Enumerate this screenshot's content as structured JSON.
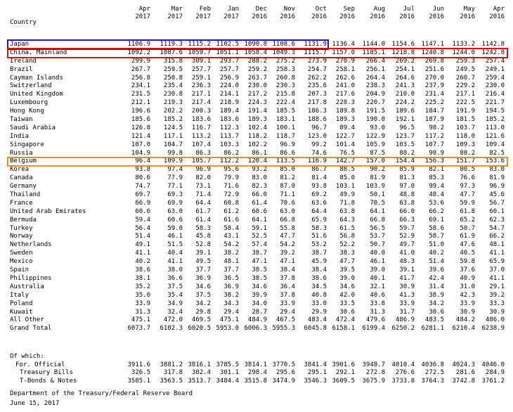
{
  "header": {
    "country_label": "Country",
    "columns": [
      {
        "month": "Apr",
        "year": "2017"
      },
      {
        "month": "Mar",
        "year": "2017"
      },
      {
        "month": "Feb",
        "year": "2017"
      },
      {
        "month": "Jan",
        "year": "2017"
      },
      {
        "month": "Dec",
        "year": "2016"
      },
      {
        "month": "Nov",
        "year": "2016"
      },
      {
        "month": "Oct",
        "year": "2016"
      },
      {
        "month": "Sep",
        "year": "2016"
      },
      {
        "month": "Aug",
        "year": "2016"
      },
      {
        "month": "Jul",
        "year": "2016"
      },
      {
        "month": "Jun",
        "year": "2016"
      },
      {
        "month": "May",
        "year": "2016"
      },
      {
        "month": "Apr",
        "year": "2016"
      }
    ]
  },
  "rows": [
    {
      "country": "Japan",
      "values": [
        "1106.9",
        "1119.3",
        "1115.2",
        "1102.5",
        "1090.8",
        "1108.6",
        "1131.9",
        "1136.4",
        "1144.0",
        "1154.6",
        "1147.1",
        "1133.2",
        "1142.8"
      ]
    },
    {
      "country": "China, Mainland",
      "values": [
        "1092.2",
        "1087.6",
        "1059.7",
        "1051.1",
        "1058.4",
        "1049.3",
        "1115.7",
        "1157.0",
        "1185.1",
        "1218.8",
        "1240.8",
        "1244.0",
        "1242.8"
      ]
    },
    {
      "country": "Ireland",
      "values": [
        "299.9",
        "315.8",
        "309.1",
        "293.7",
        "288.2",
        "275.2",
        "273.9",
        "270.9",
        "266.4",
        "269.2",
        "269.8",
        "259.3",
        "257.4"
      ]
    },
    {
      "country": "Brazil",
      "values": [
        "267.7",
        "259.5",
        "257.7",
        "257.7",
        "259.2",
        "258.3",
        "254.7",
        "258.1",
        "256.1",
        "254.1",
        "251.6",
        "249.5",
        "249.1"
      ]
    },
    {
      "country": "Cayman Islands",
      "values": [
        "256.8",
        "250.8",
        "259.1",
        "256.9",
        "263.7",
        "260.8",
        "262.2",
        "262.6",
        "264.4",
        "264.6",
        "270.0",
        "260.7",
        "259.4"
      ]
    },
    {
      "country": "Switzerland",
      "values": [
        "234.1",
        "235.4",
        "236.3",
        "224.0",
        "230.0",
        "230.3",
        "235.6",
        "241.0",
        "238.3",
        "241.3",
        "237.9",
        "229.2",
        "230.0"
      ]
    },
    {
      "country": "United Kingdom",
      "values": [
        "231.5",
        "230.8",
        "217.1",
        "214.1",
        "217.2",
        "215.8",
        "207.3",
        "217.6",
        "204.9",
        "210.0",
        "231.4",
        "217.1",
        "216.4"
      ]
    },
    {
      "country": "Luxembourg",
      "values": [
        "212.1",
        "219.3",
        "217.4",
        "218.9",
        "224.3",
        "222.4",
        "217.8",
        "228.3",
        "220.7",
        "224.2",
        "225.2",
        "222.5",
        "221.7"
      ]
    },
    {
      "country": "Hong Kong",
      "values": [
        "196.6",
        "202.2",
        "200.3",
        "189.4",
        "191.4",
        "185.5",
        "186.3",
        "189.8",
        "191.5",
        "189.6",
        "184.7",
        "191.9",
        "194.5"
      ]
    },
    {
      "country": "Taiwan",
      "values": [
        "185.6",
        "185.2",
        "183.6",
        "183.6",
        "189.3",
        "183.1",
        "188.6",
        "189.3",
        "190.0",
        "192.1",
        "187.9",
        "181.5",
        "185.2"
      ]
    },
    {
      "country": "Saudi Arabia",
      "values": [
        "126.8",
        "124.5",
        "116.7",
        "112.3",
        "102.4",
        "100.1",
        "96.7",
        "89.4",
        "93.0",
        "96.5",
        "98.2",
        "103.7",
        "113.0"
      ]
    },
    {
      "country": "India",
      "values": [
        "121.4",
        "117.1",
        "113.2",
        "113.7",
        "118.2",
        "118.7",
        "123.0",
        "122.7",
        "122.9",
        "123.7",
        "117.2",
        "118.0",
        "121.6"
      ]
    },
    {
      "country": "Singapore",
      "values": [
        "107.0",
        "104.7",
        "107.4",
        "103.3",
        "102.2",
        "96.9",
        "99.2",
        "101.4",
        "105.9",
        "103.5",
        "107.7",
        "109.3",
        "109.4"
      ]
    },
    {
      "country": "Russia",
      "values": [
        "104.9",
        "99.8",
        "86.3",
        "86.2",
        "86.1",
        "86.6",
        "74.6",
        "76.5",
        "87.5",
        "88.2",
        "90.9",
        "88.2",
        "82.5"
      ]
    },
    {
      "country": "Belgium",
      "values": [
        "96.4",
        "109.9",
        "105.7",
        "112.2",
        "120.4",
        "113.5",
        "116.9",
        "142.7",
        "157.0",
        "154.4",
        "156.3",
        "151.7",
        "153.6"
      ]
    },
    {
      "country": "Korea",
      "values": [
        "93.8",
        "97.4",
        "96.9",
        "95.6",
        "93.2",
        "85.0",
        "86.7",
        "88.5",
        "90.2",
        "85.9",
        "82.1",
        "80.5",
        "83.0"
      ]
    },
    {
      "country": "Canada",
      "values": [
        "80.6",
        "77.9",
        "82.0",
        "79.9",
        "83.0",
        "81.2",
        "81.4",
        "85.0",
        "81.9",
        "81.3",
        "85.3",
        "76.6",
        "81.9"
      ]
    },
    {
      "country": "Germany",
      "values": [
        "74.7",
        "77.1",
        "73.1",
        "71.6",
        "82.3",
        "87.0",
        "93.8",
        "103.1",
        "103.9",
        "97.0",
        "99.4",
        "97.3",
        "96.9"
      ]
    },
    {
      "country": "Thailand",
      "values": [
        "69.7",
        "69.3",
        "71.4",
        "72.9",
        "66.0",
        "71.1",
        "69.2",
        "49.9",
        "50.1",
        "48.8",
        "48.4",
        "47.7",
        "45.6"
      ]
    },
    {
      "country": "France",
      "values": [
        "66.9",
        "69.9",
        "64.4",
        "60.8",
        "61.4",
        "70.6",
        "63.6",
        "71.8",
        "70.5",
        "63.8",
        "53.6",
        "59.9",
        "56.7"
      ]
    },
    {
      "country": "United Arab Emirates",
      "values": [
        "60.6",
        "63.0",
        "61.7",
        "61.2",
        "60.6",
        "63.0",
        "64.4",
        "63.8",
        "64.1",
        "66.0",
        "66.2",
        "61.8",
        "60.1"
      ]
    },
    {
      "country": "Bermuda",
      "values": [
        "59.4",
        "60.6",
        "61.4",
        "61.6",
        "64.1",
        "66.8",
        "65.9",
        "64.3",
        "66.8",
        "66.3",
        "69.1",
        "65.2",
        "62.3"
      ]
    },
    {
      "country": "Turkey",
      "values": [
        "56.4",
        "59.0",
        "58.3",
        "58.4",
        "59.1",
        "55.8",
        "58.3",
        "61.5",
        "56.5",
        "59.7",
        "58.6",
        "50.7",
        "54.7"
      ]
    },
    {
      "country": "Norway",
      "values": [
        "51.4",
        "46.1",
        "45.8",
        "43.1",
        "52.5",
        "47.7",
        "51.6",
        "56.8",
        "53.7",
        "52.9",
        "58.7",
        "61.9",
        "66.2"
      ]
    },
    {
      "country": "Netherlands",
      "values": [
        "49.1",
        "51.5",
        "52.8",
        "54.2",
        "57.4",
        "54.2",
        "53.2",
        "52.2",
        "50.7",
        "49.7",
        "51.0",
        "47.6",
        "48.1"
      ]
    },
    {
      "country": "Sweden",
      "values": [
        "41.1",
        "40.4",
        "39.1",
        "38.2",
        "38.7",
        "39.2",
        "38.7",
        "38.3",
        "40.0",
        "41.0",
        "40.2",
        "40.5",
        "41.1"
      ]
    },
    {
      "country": "Mexico",
      "values": [
        "40.2",
        "41.1",
        "49.5",
        "48.1",
        "47.1",
        "47.1",
        "45.9",
        "47.7",
        "46.1",
        "48.3",
        "51.4",
        "59.8",
        "65.9"
      ]
    },
    {
      "country": "Spain",
      "values": [
        "38.6",
        "38.0",
        "37.7",
        "37.7",
        "38.5",
        "38.4",
        "38.4",
        "39.5",
        "39.0",
        "39.1",
        "39.6",
        "37.6",
        "37.0"
      ]
    },
    {
      "country": "Philippines",
      "values": [
        "38.1",
        "36.6",
        "36.9",
        "36.5",
        "38.5",
        "37.8",
        "38.6",
        "39.0",
        "40.1",
        "41.7",
        "42.4",
        "40.9",
        "41.1"
      ]
    },
    {
      "country": "Australia",
      "values": [
        "35.2",
        "37.5",
        "34.6",
        "36.9",
        "34.6",
        "36.4",
        "34.5",
        "34.6",
        "32.1",
        "30.9",
        "31.4",
        "31.0",
        "29.1"
      ]
    },
    {
      "country": "Italy",
      "values": [
        "35.0",
        "35.4",
        "37.5",
        "38.2",
        "39.9",
        "37.8",
        "40.8",
        "42.0",
        "40.6",
        "41.3",
        "38.9",
        "42.3",
        "39.2"
      ]
    },
    {
      "country": "Poland",
      "values": [
        "33.9",
        "34.9",
        "34.2",
        "34.3",
        "34.0",
        "33.9",
        "33.0",
        "33.5",
        "33.8",
        "33.9",
        "34.2",
        "33.9",
        "33.3"
      ]
    },
    {
      "country": "Kuwait",
      "values": [
        "31.3",
        "32.4",
        "29.8",
        "29.4",
        "28.7",
        "29.4",
        "29.9",
        "30.6",
        "31.3",
        "31.7",
        "30.6",
        "30.9",
        "30.9"
      ]
    },
    {
      "country": "All Other",
      "values": [
        "475.1",
        "472.0",
        "469.5",
        "475.1",
        "484.9",
        "467.5",
        "483.4",
        "472.4",
        "479.6",
        "486.9",
        "483.5",
        "484.2",
        "486.0"
      ]
    },
    {
      "country": "Grand Total",
      "values": [
        "6073.7",
        "6102.3",
        "6020.5",
        "5953.0",
        "6006.3",
        "5955.3",
        "6045.8",
        "6158.1",
        "6199.4",
        "6250.2",
        "6281.1",
        "6210.4",
        "6238.9"
      ]
    }
  ],
  "of_which": {
    "label": "Of which:",
    "rows": [
      {
        "label": "For. Official",
        "values": [
          "3911.6",
          "3881.2",
          "3816.1",
          "3785.5",
          "3814.1",
          "3770.5",
          "3841.4",
          "3901.6",
          "3948.7",
          "4010.4",
          "4036.8",
          "4024.3",
          "4046.0"
        ]
      },
      {
        "label": "Treasury Bills",
        "values": [
          "326.5",
          "317.8",
          "302.4",
          "301.1",
          "298.4",
          "295.6",
          "295.1",
          "292.1",
          "272.8",
          "276.6",
          "272.5",
          "281.6",
          "284.9"
        ]
      },
      {
        "label": "T-Bonds & Notes",
        "values": [
          "3585.1",
          "3563.5",
          "3513.7",
          "3484.4",
          "3515.8",
          "3474.9",
          "3546.3",
          "3609.5",
          "3675.9",
          "3733.8",
          "3764.3",
          "3742.8",
          "3761.2"
        ]
      }
    ]
  },
  "footer": {
    "source": "Department of the Treasury/Federal Reserve Board",
    "date": "June 15, 2017"
  },
  "highlights": [
    {
      "country": "Japan",
      "color": "#1a1ab4",
      "extent": "Apr 2017 - Oct 2016"
    },
    {
      "country": "China, Mainland",
      "color": "#d21414",
      "extent": "all columns"
    },
    {
      "country": "Belgium",
      "color": "#f08c1e",
      "extent": "all columns"
    }
  ]
}
